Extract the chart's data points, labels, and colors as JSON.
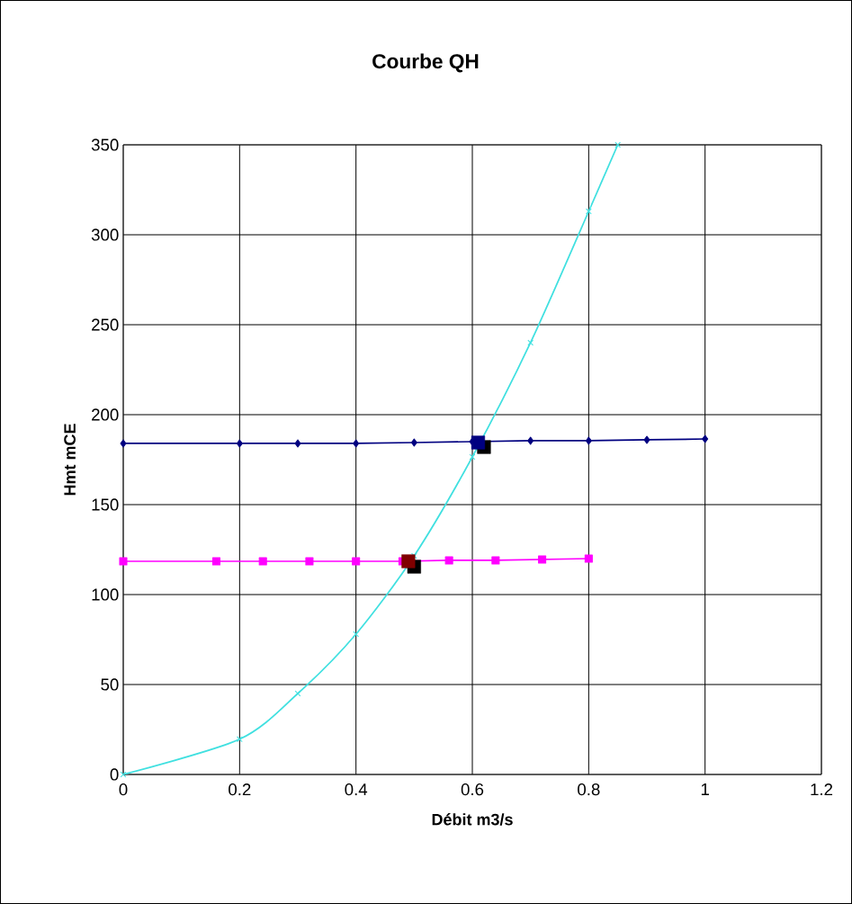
{
  "chart_data": {
    "type": "line",
    "title": "Courbe QH",
    "xlabel": "Débit m3/s",
    "ylabel": "Hmt mCE",
    "xlim": [
      0,
      1.2
    ],
    "ylim": [
      0,
      350
    ],
    "xticks": [
      0,
      0.2,
      0.4,
      0.6,
      0.8,
      1,
      1.2
    ],
    "yticks": [
      0,
      50,
      100,
      150,
      200,
      250,
      300,
      350
    ],
    "grid": true,
    "line_style": "solid",
    "series": [
      {
        "color": "#000080",
        "marker": "diamond",
        "x": [
          0,
          0.2,
          0.3,
          0.4,
          0.5,
          0.6,
          0.7,
          0.8,
          0.9,
          1
        ],
        "values": [
          184,
          184,
          184,
          184,
          184.5,
          185,
          185.5,
          185.5,
          186,
          186.5
        ]
      },
      {
        "color": "#ff00ff",
        "marker": "square",
        "x": [
          0,
          0.16,
          0.24,
          0.32,
          0.4,
          0.48,
          0.56,
          0.64,
          0.72,
          0.8
        ],
        "values": [
          118.5,
          118.5,
          118.5,
          118.5,
          118.5,
          118.5,
          119,
          119,
          119.5,
          120
        ]
      },
      {
        "color": "#40e0e0",
        "marker": "cross",
        "x": [
          0,
          0.2,
          0.3,
          0.4,
          0.5,
          0.6,
          0.7,
          0.8,
          0.85
        ],
        "values": [
          0,
          19.6,
          45,
          78,
          121.5,
          176.5,
          240,
          313,
          350
        ]
      },
      {
        "type": "scatter",
        "color": "#000000",
        "marker": "square",
        "x": [
          0.62,
          0.5
        ],
        "values": [
          182,
          115.5
        ]
      },
      {
        "type": "scatter",
        "color": "#000080",
        "marker": "square",
        "x": [
          0.61
        ],
        "values": [
          184.5
        ]
      },
      {
        "type": "scatter",
        "color": "#800000",
        "marker": "square",
        "x": [
          0.49
        ],
        "values": [
          118.5
        ]
      }
    ]
  }
}
